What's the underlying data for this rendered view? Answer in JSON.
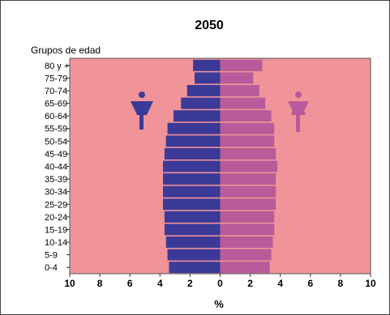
{
  "chart_data": {
    "type": "bar",
    "orientation": "horizontal",
    "title": "2050",
    "ylabel": "Grupos de edad",
    "xlabel": "%",
    "categories": [
      "80 y +",
      "75-79",
      "70-74",
      "65-69",
      "60-64",
      "55-59",
      "50-54",
      "45-49",
      "40-44",
      "35-39",
      "30-34",
      "25-29",
      "20-24",
      "15-19",
      "10-14",
      "5-9",
      "0-4"
    ],
    "series": [
      {
        "values": [
          1.8,
          1.7,
          2.2,
          2.6,
          3.1,
          3.5,
          3.6,
          3.7,
          3.8,
          3.8,
          3.8,
          3.8,
          3.7,
          3.7,
          3.6,
          3.5,
          3.4
        ]
      },
      {
        "values": [
          2.8,
          2.2,
          2.6,
          3.0,
          3.4,
          3.6,
          3.6,
          3.7,
          3.8,
          3.7,
          3.7,
          3.7,
          3.6,
          3.6,
          3.5,
          3.4,
          3.3
        ]
      }
    ],
    "xticks": [
      "10",
      "8",
      "6",
      "4",
      "2",
      "0",
      "2",
      "4",
      "6",
      "8",
      "10"
    ],
    "xlim": [
      -10,
      10
    ],
    "colors": {
      "male": "#3b3a98",
      "female": "#b85b9a",
      "background": "#f0949a"
    }
  }
}
